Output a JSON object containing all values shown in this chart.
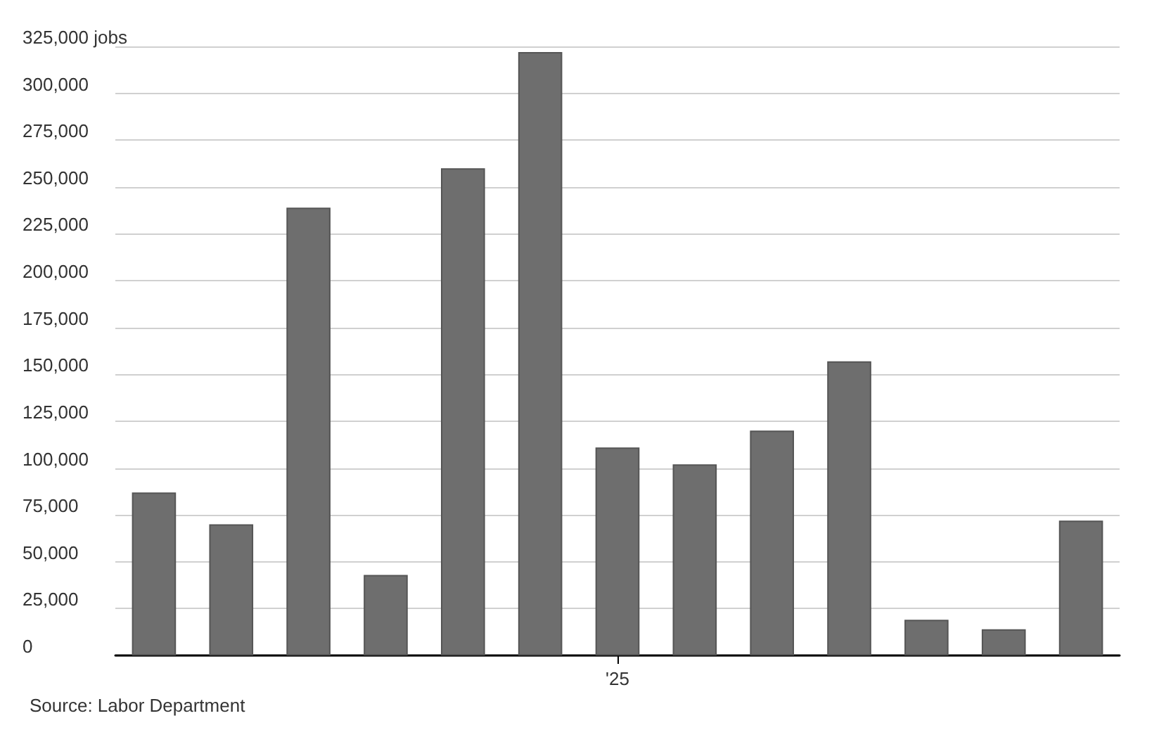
{
  "chart_data": {
    "type": "bar",
    "categories": [
      null,
      null,
      null,
      null,
      null,
      null,
      "'25",
      null,
      null,
      null,
      null,
      null,
      null
    ],
    "values": [
      87000,
      70000,
      239000,
      43000,
      260000,
      322000,
      111000,
      102000,
      120000,
      157000,
      19000,
      14000,
      72000
    ],
    "color": "#6e6e6e",
    "ylim": [
      0,
      325000
    ],
    "yticks": [
      {
        "value": 0,
        "label": "0"
      },
      {
        "value": 25000,
        "label": "25,000"
      },
      {
        "value": 50000,
        "label": "50,000"
      },
      {
        "value": 75000,
        "label": "75,000"
      },
      {
        "value": 100000,
        "label": "100,000"
      },
      {
        "value": 125000,
        "label": "125,000"
      },
      {
        "value": 150000,
        "label": "150,000"
      },
      {
        "value": 175000,
        "label": "175,000"
      },
      {
        "value": 200000,
        "label": "200,000"
      },
      {
        "value": 225000,
        "label": "225,000"
      },
      {
        "value": 250000,
        "label": "250,000"
      },
      {
        "value": 275000,
        "label": "275,000"
      },
      {
        "value": 300000,
        "label": "300,000"
      },
      {
        "value": 325000,
        "label": "325,000 jobs"
      }
    ],
    "grid": "y",
    "annotations": [
      "Source: Labor Department"
    ]
  }
}
